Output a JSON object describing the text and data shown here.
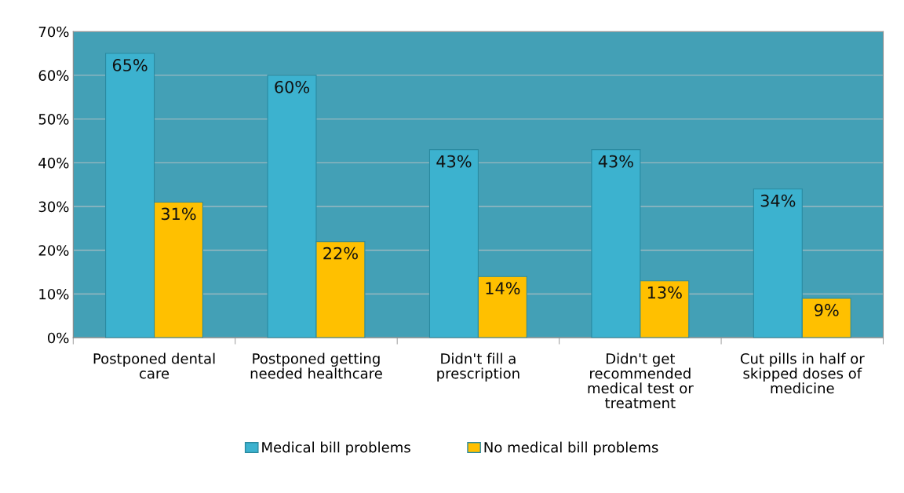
{
  "chart_data": {
    "type": "bar",
    "categories": [
      "Postponed dental care",
      "Postponed getting needed healthcare",
      "Didn't fill a prescription",
      "Didn't get recommended medical test or treatment",
      "Cut pills in half or skipped doses of medicine"
    ],
    "series": [
      {
        "name": "Medical bill problems",
        "color": "#3cb2cf",
        "values": [
          65,
          60,
          43,
          43,
          34
        ]
      },
      {
        "name": "No medical bill problems",
        "color": "#ffc000",
        "values": [
          31,
          22,
          14,
          13,
          9
        ]
      }
    ],
    "ylim": [
      0,
      70
    ],
    "yticks": [
      {
        "value": 0,
        "label": "0%"
      },
      {
        "value": 10,
        "label": "10%"
      },
      {
        "value": 20,
        "label": "20%"
      },
      {
        "value": 30,
        "label": "30%"
      },
      {
        "value": 40,
        "label": "40%"
      },
      {
        "value": 50,
        "label": "50%"
      },
      {
        "value": 60,
        "label": "60%"
      },
      {
        "value": 70,
        "label": "70%"
      }
    ],
    "value_labels": [
      [
        "65%",
        "60%",
        "43%",
        "43%",
        "34%"
      ],
      [
        "31%",
        "22%",
        "14%",
        "13%",
        "9%"
      ]
    ],
    "grid": "y",
    "legend": "bottom"
  }
}
